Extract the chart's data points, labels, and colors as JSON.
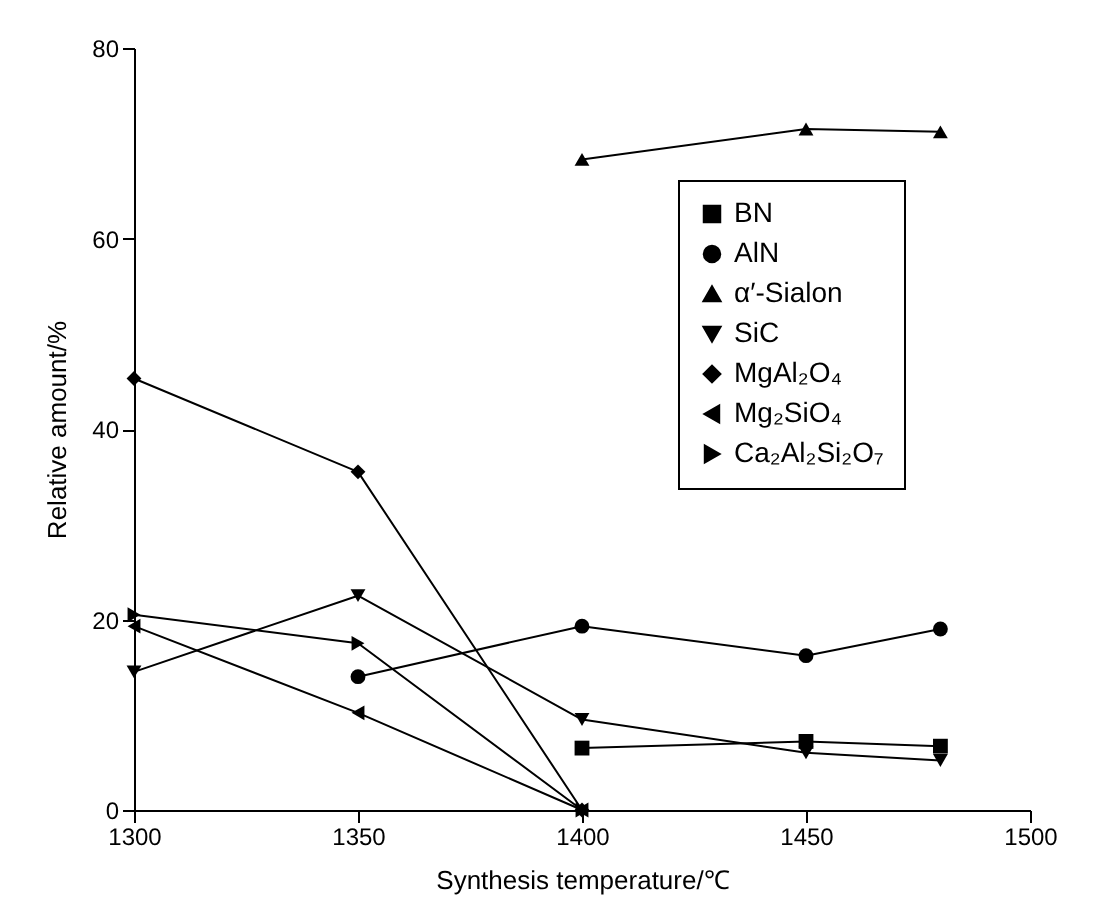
{
  "chart_data": {
    "type": "line",
    "xlabel": "Synthesis temperature/℃",
    "ylabel": "Relative amount/%",
    "xlim": [
      1300,
      1500
    ],
    "xticks": [
      1300,
      1350,
      1400,
      1450,
      1500
    ],
    "ylim": [
      0,
      80
    ],
    "yticks": [
      0,
      20,
      40,
      60,
      80
    ],
    "grid": false,
    "legend": "top right",
    "line_style": "solid",
    "series": [
      {
        "name": "BN",
        "color": "#000000",
        "marker": "square",
        "x": [
          1400,
          1450,
          1480
        ],
        "values": [
          6.5,
          7.2,
          6.7
        ]
      },
      {
        "name": "AlN",
        "color": "#000000",
        "marker": "circle",
        "x": [
          1350,
          1400,
          1450,
          1480
        ],
        "values": [
          14,
          19.3,
          16.2,
          19
        ]
      },
      {
        "name": "α′-Sialon",
        "color": "#000000",
        "marker": "triangle",
        "x": [
          1400,
          1450,
          1480
        ],
        "values": [
          68.3,
          71.5,
          71.2
        ]
      },
      {
        "name": "SiC",
        "color": "#000000",
        "marker": "triangle-down",
        "x": [
          1300,
          1350,
          1400,
          1450,
          1480
        ],
        "values": [
          14.5,
          22.5,
          9.5,
          6,
          5.2
        ]
      },
      {
        "name": "MgAl₂O₄",
        "color": "#000000",
        "marker": "diamond",
        "x": [
          1300,
          1350,
          1400
        ],
        "values": [
          45.3,
          35.5,
          0
        ]
      },
      {
        "name": "Mg₂SiO₄",
        "color": "#000000",
        "marker": "triangle-left",
        "x": [
          1300,
          1350,
          1400
        ],
        "values": [
          19.3,
          10.2,
          0
        ]
      },
      {
        "name": "Ca₂Al₂Si₂O₇",
        "color": "#000000",
        "marker": "triangle-right",
        "x": [
          1300,
          1350,
          1400
        ],
        "values": [
          20.5,
          17.5,
          0
        ]
      }
    ]
  }
}
